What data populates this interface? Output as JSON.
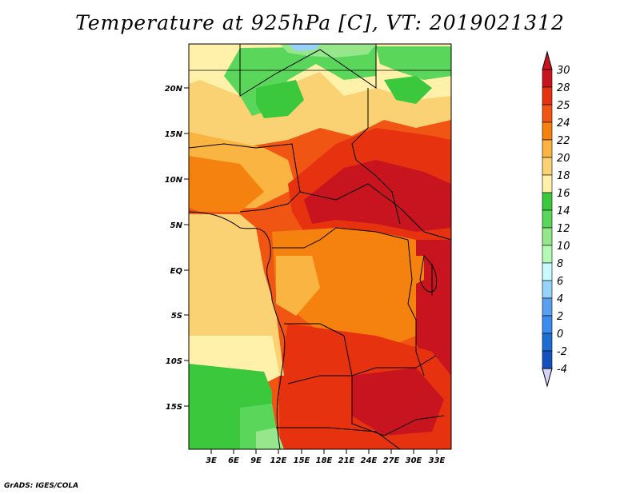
{
  "title": "Temperature at 925hPa [C], VT: 2019021312",
  "credit": "GrADS: IGES/COLA",
  "map": {
    "lon_range": [
      -1,
      35
    ],
    "lat_range": [
      -20,
      24
    ],
    "lon_ticks": [
      "3E",
      "6E",
      "9E",
      "12E",
      "15E",
      "18E",
      "21E",
      "24E",
      "27E",
      "30E",
      "33E"
    ],
    "lat_ticks": [
      "20N",
      "15N",
      "10N",
      "5N",
      "EQ",
      "5S",
      "10S",
      "15S"
    ]
  },
  "colorbar": {
    "labels": [
      "30",
      "28",
      "25",
      "24",
      "22",
      "20",
      "18",
      "16",
      "14",
      "12",
      "10",
      "8",
      "6",
      "4",
      "2",
      "0",
      "-2",
      "-4"
    ],
    "colors": [
      "#c8141e",
      "#e6320f",
      "#f05514",
      "#f5820f",
      "#fab441",
      "#fad273",
      "#fff0aa",
      "#3cc83c",
      "#5ad75a",
      "#96e68c",
      "#b4fab4",
      "#c8faff",
      "#96d2fa",
      "#5aa0f0",
      "#3c8cf0",
      "#1e6ed2",
      "#1450be",
      "#0a2896",
      "#000064"
    ],
    "tip_top": "#c8141e",
    "tip_bottom": "#d4d4f8"
  }
}
